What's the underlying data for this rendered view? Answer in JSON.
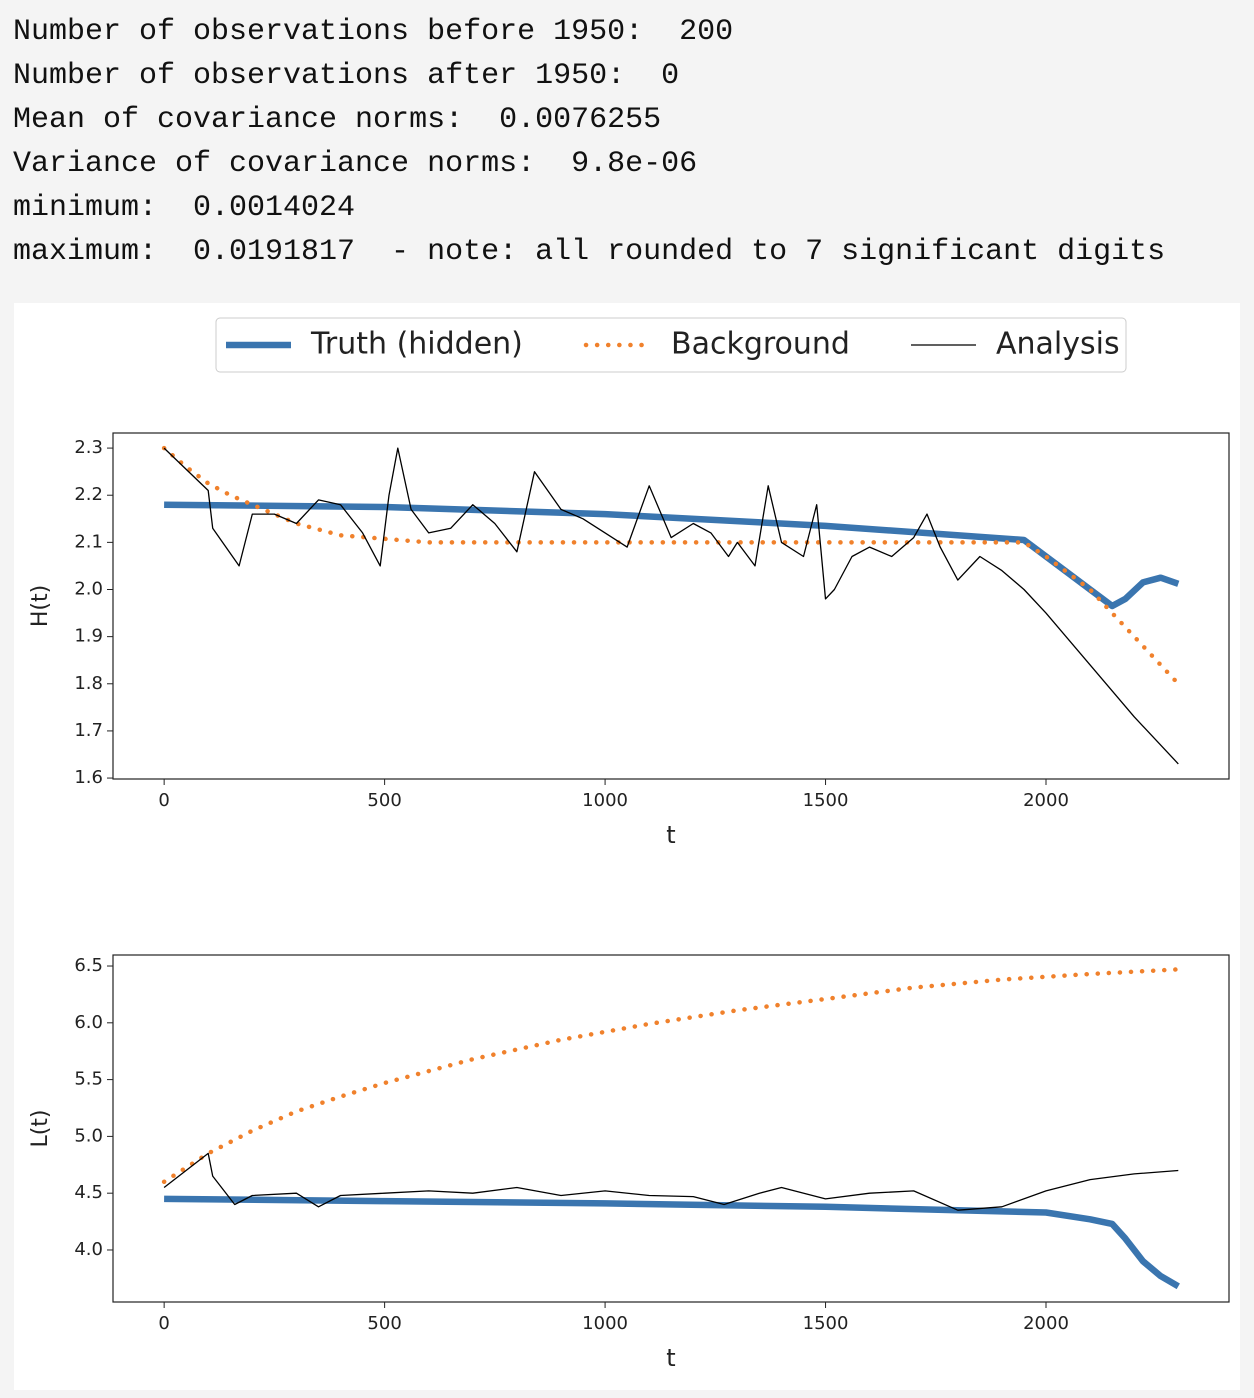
{
  "output_lines": [
    "Number of observations before 1950:  200",
    "Number of observations after 1950:  0",
    "Mean of covariance norms:  0.0076255",
    "Variance of covariance norms:  9.8e-06",
    "minimum:  0.0014024",
    "maximum:  0.0191817  - note: all rounded to 7 significant digits"
  ],
  "chart_data": [
    {
      "type": "line",
      "ylabel": "H(t)",
      "xlabel": "t",
      "legend": "upper center",
      "grid": false,
      "xlim": [
        -116,
        2415
      ],
      "xticks": [
        0,
        500,
        1000,
        1500,
        2000
      ],
      "ylim": [
        1.598,
        2.332
      ],
      "yticks": [
        1.6,
        1.7,
        1.8,
        1.9,
        {
          "value": 2,
          "label": "2.0"
        },
        2.1,
        2.2,
        2.3
      ],
      "series": [
        {
          "name": "Truth (hidden)",
          "color": "#3a75af",
          "style": "solid-thick",
          "x": [
            0,
            500,
            1000,
            1500,
            1950,
            2050,
            2100,
            2150,
            2180,
            2220,
            2260,
            2300
          ],
          "values": [
            2.18,
            2.175,
            2.16,
            2.135,
            2.105,
            2.035,
            2.0,
            1.965,
            1.98,
            2.015,
            2.025,
            2.012
          ]
        },
        {
          "name": "Background",
          "color": "#f0812c",
          "style": "dotted",
          "x": [
            0,
            50,
            100,
            150,
            200,
            300,
            400,
            600,
            1950,
            2000,
            2100,
            2200,
            2300
          ],
          "values": [
            2.3,
            2.26,
            2.225,
            2.2,
            2.18,
            2.14,
            2.115,
            2.1,
            2.1,
            2.07,
            2.0,
            1.9,
            1.8
          ]
        },
        {
          "name": "Analysis",
          "color": "#000000",
          "style": "thin",
          "x": [
            0,
            100,
            110,
            170,
            200,
            250,
            300,
            350,
            400,
            450,
            490,
            510,
            530,
            560,
            600,
            650,
            700,
            750,
            800,
            840,
            900,
            950,
            1000,
            1050,
            1100,
            1150,
            1200,
            1240,
            1280,
            1300,
            1340,
            1370,
            1400,
            1450,
            1480,
            1500,
            1520,
            1560,
            1600,
            1650,
            1700,
            1730,
            1760,
            1800,
            1850,
            1900,
            1950,
            2000,
            2100,
            2200,
            2300
          ],
          "values": [
            2.3,
            2.21,
            2.13,
            2.05,
            2.16,
            2.16,
            2.14,
            2.19,
            2.18,
            2.12,
            2.05,
            2.2,
            2.3,
            2.17,
            2.12,
            2.13,
            2.18,
            2.14,
            2.08,
            2.25,
            2.17,
            2.15,
            2.12,
            2.09,
            2.22,
            2.11,
            2.14,
            2.12,
            2.07,
            2.1,
            2.05,
            2.22,
            2.1,
            2.07,
            2.18,
            1.98,
            2.0,
            2.07,
            2.09,
            2.07,
            2.11,
            2.16,
            2.09,
            2.02,
            2.07,
            2.04,
            2.0,
            1.95,
            1.84,
            1.73,
            1.63
          ]
        }
      ]
    },
    {
      "type": "line",
      "ylabel": "L(t)",
      "xlabel": "t",
      "grid": false,
      "xlim": [
        -116,
        2415
      ],
      "xticks": [
        0,
        500,
        1000,
        1500,
        2000
      ],
      "ylim": [
        3.542,
        6.597
      ],
      "yticks": [
        {
          "value": 4,
          "label": "4.0"
        },
        4.5,
        {
          "value": 5,
          "label": "5.0"
        },
        5.5,
        {
          "value": 6,
          "label": "6.0"
        },
        6.5
      ],
      "series": [
        {
          "color": "#3a75af",
          "style": "solid-thick",
          "x": [
            0,
            500,
            1000,
            1500,
            1900,
            2000,
            2100,
            2150,
            2180,
            2220,
            2260,
            2300
          ],
          "values": [
            4.45,
            4.43,
            4.41,
            4.38,
            4.34,
            4.33,
            4.27,
            4.23,
            4.1,
            3.9,
            3.77,
            3.68
          ]
        },
        {
          "color": "#f0812c",
          "style": "dotted",
          "x": [
            0,
            100,
            200,
            300,
            400,
            500,
            700,
            900,
            1100,
            1300,
            1500,
            1700,
            1900,
            2100,
            2300
          ],
          "values": [
            4.6,
            4.85,
            5.05,
            5.22,
            5.35,
            5.47,
            5.68,
            5.85,
            5.99,
            6.11,
            6.21,
            6.31,
            6.38,
            6.43,
            6.47
          ]
        },
        {
          "color": "#000000",
          "style": "thin",
          "x": [
            0,
            100,
            110,
            160,
            200,
            300,
            350,
            400,
            500,
            600,
            700,
            800,
            900,
            1000,
            1100,
            1200,
            1270,
            1350,
            1400,
            1500,
            1600,
            1700,
            1800,
            1900,
            2000,
            2100,
            2200,
            2300
          ],
          "values": [
            4.55,
            4.85,
            4.65,
            4.4,
            4.48,
            4.5,
            4.38,
            4.48,
            4.5,
            4.52,
            4.5,
            4.55,
            4.48,
            4.52,
            4.48,
            4.47,
            4.4,
            4.5,
            4.55,
            4.45,
            4.5,
            4.52,
            4.35,
            4.38,
            4.52,
            4.62,
            4.67,
            4.7
          ]
        }
      ]
    }
  ]
}
